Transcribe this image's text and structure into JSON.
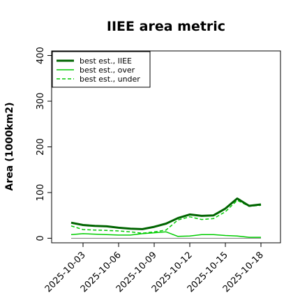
{
  "chart_data": {
    "type": "line",
    "title": "IIEE area metric",
    "xlabel": "",
    "ylabel": "Area (1000km2)",
    "ylim": [
      -10,
      410
    ],
    "yticks": [
      0,
      100,
      200,
      300,
      400
    ],
    "x": [
      "2025-10-02",
      "2025-10-03",
      "2025-10-04",
      "2025-10-05",
      "2025-10-06",
      "2025-10-07",
      "2025-10-08",
      "2025-10-09",
      "2025-10-10",
      "2025-10-11",
      "2025-10-12",
      "2025-10-13",
      "2025-10-14",
      "2025-10-15",
      "2025-10-16",
      "2025-10-17",
      "2025-10-18"
    ],
    "xticks": [
      "2025-10-03",
      "2025-10-06",
      "2025-10-09",
      "2025-10-12",
      "2025-10-15",
      "2025-10-18"
    ],
    "legend_position": "top-left",
    "grid": false,
    "baseline": 0,
    "series": [
      {
        "name": "best est., IIEE",
        "color": "#006400",
        "style": "solid",
        "width": 3,
        "values": [
          34,
          29,
          27,
          26,
          23,
          21,
          20,
          25,
          32,
          44,
          52,
          49,
          50,
          65,
          87,
          71,
          74
        ]
      },
      {
        "name": "best est., over",
        "color": "#00cc00",
        "style": "solid",
        "width": 1.5,
        "values": [
          8,
          10,
          9,
          8,
          7,
          7,
          10,
          12,
          14,
          4,
          5,
          8,
          8,
          6,
          5,
          2,
          2
        ]
      },
      {
        "name": "best est., under",
        "color": "#00cc00",
        "style": "dashed",
        "width": 1.5,
        "values": [
          27,
          19,
          18,
          17,
          16,
          14,
          11,
          14,
          18,
          40,
          47,
          41,
          43,
          58,
          83,
          70,
          72
        ]
      }
    ]
  }
}
